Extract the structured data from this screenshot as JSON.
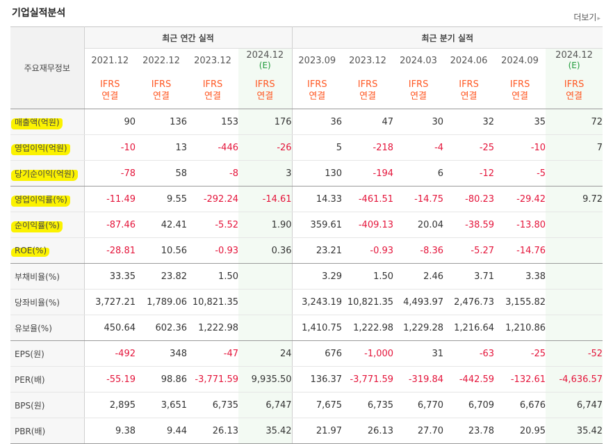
{
  "header": {
    "title": "기업실적분석",
    "more_label": "더보기",
    "more_icon": "chevron-right-icon"
  },
  "table": {
    "row_header_label": "주요재무정보",
    "group_labels": {
      "annual": "최근 연간 실적",
      "quarterly": "최근 분기 실적"
    },
    "periods": [
      {
        "label": "2021.12",
        "estimate": ""
      },
      {
        "label": "2022.12",
        "estimate": ""
      },
      {
        "label": "2023.12",
        "estimate": ""
      },
      {
        "label": "2024.12",
        "estimate": "(E)"
      },
      {
        "label": "2023.09",
        "estimate": ""
      },
      {
        "label": "2023.12",
        "estimate": ""
      },
      {
        "label": "2024.03",
        "estimate": ""
      },
      {
        "label": "2024.06",
        "estimate": ""
      },
      {
        "label": "2024.09",
        "estimate": ""
      },
      {
        "label": "2024.12",
        "estimate": "(E)"
      }
    ],
    "standard": {
      "line1": "IFRS",
      "line2": "연결"
    },
    "rows": [
      {
        "label": "매출액(억원)",
        "highlight": true,
        "values": [
          "90",
          "136",
          "153",
          "176",
          "36",
          "47",
          "30",
          "32",
          "35",
          "72"
        ]
      },
      {
        "label": "영업이익(억원)",
        "highlight": true,
        "values": [
          "-10",
          "13",
          "-446",
          "-26",
          "5",
          "-218",
          "-4",
          "-25",
          "-10",
          "7"
        ]
      },
      {
        "label": "당기순이익(억원)",
        "highlight": true,
        "values": [
          "-78",
          "58",
          "-8",
          "3",
          "130",
          "-194",
          "6",
          "-12",
          "-5",
          ""
        ]
      },
      {
        "label": "영업이익률(%)",
        "highlight": true,
        "values": [
          "-11.49",
          "9.55",
          "-292.24",
          "-14.61",
          "14.33",
          "-461.51",
          "-14.75",
          "-80.23",
          "-29.42",
          "9.72"
        ]
      },
      {
        "label": "순이익률(%)",
        "highlight": true,
        "values": [
          "-87.46",
          "42.41",
          "-5.52",
          "1.90",
          "359.61",
          "-409.13",
          "20.04",
          "-38.59",
          "-13.80",
          ""
        ]
      },
      {
        "label": "ROE(%)",
        "highlight": true,
        "values": [
          "-28.81",
          "10.56",
          "-0.93",
          "0.36",
          "23.21",
          "-0.93",
          "-8.36",
          "-5.27",
          "-14.76",
          ""
        ]
      },
      {
        "label": "부채비율(%)",
        "highlight": false,
        "values": [
          "33.35",
          "23.82",
          "1.50",
          "",
          "3.29",
          "1.50",
          "2.46",
          "3.71",
          "3.38",
          ""
        ]
      },
      {
        "label": "당좌비율(%)",
        "highlight": false,
        "values": [
          "3,727.21",
          "1,789.06",
          "10,821.35",
          "",
          "3,243.19",
          "10,821.35",
          "4,493.97",
          "2,476.73",
          "3,155.82",
          ""
        ]
      },
      {
        "label": "유보율(%)",
        "highlight": false,
        "values": [
          "450.64",
          "602.36",
          "1,222.98",
          "",
          "1,410.75",
          "1,222.98",
          "1,229.28",
          "1,216.64",
          "1,210.86",
          ""
        ]
      },
      {
        "label": "EPS(원)",
        "highlight": false,
        "values": [
          "-492",
          "348",
          "-47",
          "24",
          "676",
          "-1,000",
          "31",
          "-63",
          "-25",
          "-52"
        ]
      },
      {
        "label": "PER(배)",
        "highlight": false,
        "values": [
          "-55.19",
          "98.86",
          "-3,771.59",
          "9,935.50",
          "136.37",
          "-3,771.59",
          "-319.84",
          "-442.59",
          "-132.61",
          "-4,636.57"
        ]
      },
      {
        "label": "BPS(원)",
        "highlight": false,
        "values": [
          "2,895",
          "3,651",
          "6,735",
          "6,747",
          "7,675",
          "6,735",
          "6,770",
          "6,709",
          "6,676",
          "6,747"
        ]
      },
      {
        "label": "PBR(배)",
        "highlight": false,
        "values": [
          "9.38",
          "9.44",
          "26.13",
          "35.42",
          "21.97",
          "26.13",
          "27.70",
          "23.78",
          "20.95",
          "35.42"
        ]
      }
    ]
  },
  "colors": {
    "negative": "#e4143a",
    "standard": "#ff5722",
    "estimate_text": "#1f9a3a",
    "estimate_bg": "#f3faf3",
    "highlight": "#fbf200"
  }
}
